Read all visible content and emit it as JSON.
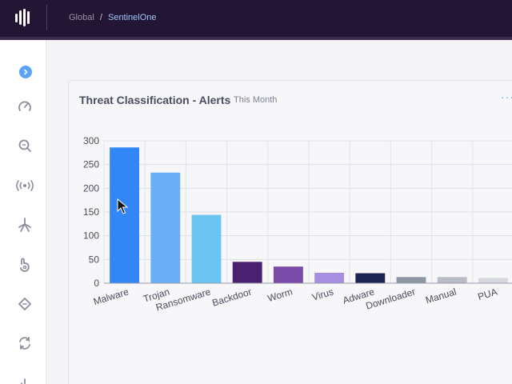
{
  "breadcrumb": {
    "root": "Global",
    "separator": "/",
    "current": "SentinelOne"
  },
  "sidebar": {
    "items": [
      {
        "icon": "dashboard-gauge-icon"
      },
      {
        "icon": "search-icon"
      },
      {
        "icon": "broadcast-icon"
      },
      {
        "icon": "star-burst-icon"
      },
      {
        "icon": "hand-icon"
      },
      {
        "icon": "tag-icon"
      },
      {
        "icon": "sync-icon"
      },
      {
        "icon": "bar-chart-icon"
      }
    ]
  },
  "card": {
    "title": "Threat Classification - Alerts",
    "subtitle": "This Month",
    "more": "···"
  },
  "colors": {
    "topbar": "#231534",
    "accent": "#5aa3f5"
  },
  "chart_data": {
    "type": "bar",
    "categories": [
      "Malware",
      "Trojan",
      "Ransomware",
      "Backdoor",
      "Worm",
      "Virus",
      "Adware",
      "Downloader",
      "Manual",
      "PUA"
    ],
    "values": [
      286,
      233,
      144,
      45,
      35,
      22,
      21,
      13,
      13,
      11
    ],
    "colors": [
      "#3286f6",
      "#6aaef7",
      "#6cc5f0",
      "#4a2070",
      "#7a4aa8",
      "#a88ee0",
      "#1c2452",
      "#8e96a4",
      "#b8bcc6",
      "#d6d9e0"
    ],
    "ylim": [
      0,
      300
    ],
    "yticks": [
      0,
      50,
      100,
      150,
      200,
      250,
      300
    ],
    "grid": true
  }
}
